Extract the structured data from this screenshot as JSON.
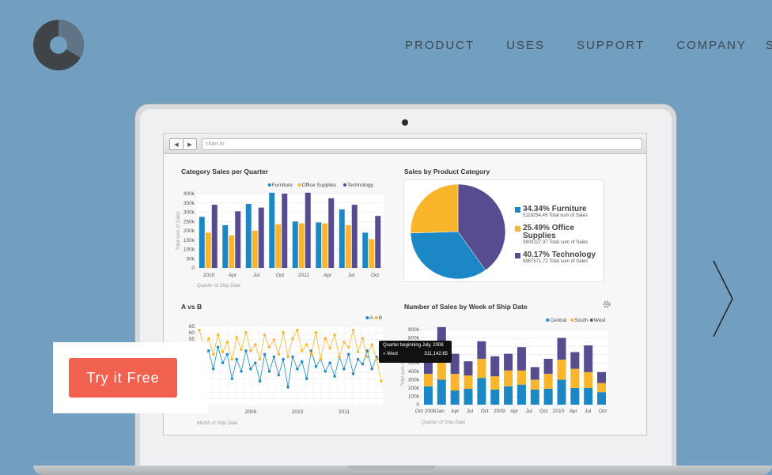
{
  "nav": {
    "items": [
      "PRODUCT",
      "USES",
      "SUPPORT",
      "COMPANY"
    ],
    "clipped": "S"
  },
  "browser": {
    "url": "chart.io",
    "back": "◀",
    "forward": "▶"
  },
  "cta": {
    "label": "Try it Free"
  },
  "colors": {
    "background": "#729fbf",
    "furniture": "#1b87c5",
    "office": "#f9b52b",
    "technology": "#564c8f",
    "cta": "#f0614f"
  },
  "tooltip": {
    "title": "Quarter beginning July, 2008",
    "series": "West",
    "value": "311,142.65"
  },
  "chart_data": [
    {
      "type": "bar",
      "title": "Category Sales per Quarter",
      "xlabel": "Quarter of Ship Date",
      "ylabel": "Total sum of Sales",
      "ylim": [
        0,
        400000
      ],
      "yticks": [
        "400k",
        "350k",
        "300k",
        "250k",
        "200k",
        "150k",
        "100k",
        "50k",
        "0"
      ],
      "xticks": [
        "2010",
        "Apr",
        "Jul",
        "Oct",
        "2011",
        "Apr",
        "Jul",
        "Oct"
      ],
      "categories": [
        "2010 Q1",
        "2010 Q2",
        "2010 Q3",
        "2010 Q4",
        "2011 Q1",
        "2011 Q2",
        "2011 Q3",
        "2011 Q4"
      ],
      "series": [
        {
          "name": "Furniture",
          "values": [
            275000,
            230000,
            345000,
            405000,
            250000,
            245000,
            315000,
            190000
          ]
        },
        {
          "name": "Office Supplies",
          "values": [
            190000,
            175000,
            200000,
            235000,
            240000,
            240000,
            230000,
            155000
          ]
        },
        {
          "name": "Technology",
          "values": [
            340000,
            305000,
            325000,
            400000,
            405000,
            375000,
            340000,
            280000
          ]
        }
      ],
      "legend": "top-right"
    },
    {
      "type": "pie",
      "title": "Sales by Product Category",
      "slices": [
        {
          "name": "Furniture",
          "percent": "34.34%",
          "value": 5119254.45,
          "sub": "5119254.45 Total sum of Sales"
        },
        {
          "name": "Office Supplies",
          "percent": "25.49%",
          "value": 3800227.37,
          "sub": "3800227.37 Total sum of Sales"
        },
        {
          "name": "Technology",
          "percent": "40.17%",
          "value": 5987571.72,
          "sub": "5987571.72 Total sum of Sales"
        }
      ],
      "labels": [
        "34.34% Furniture",
        "25.49% Office Supplies",
        "40.17% Technology"
      ]
    },
    {
      "type": "line",
      "title": "A vs B",
      "xlabel": "Month of Ship Date",
      "yticks": [
        "65",
        "60",
        "55",
        "50"
      ],
      "xticks": [
        "2009",
        "2010",
        "2011"
      ],
      "ylim": [
        0,
        65
      ],
      "series": [
        {
          "name": "A",
          "values": [
            50,
            40,
            45,
            30,
            48,
            35,
            42,
            22,
            38,
            28,
            45,
            30,
            35,
            20,
            42,
            28,
            40,
            25,
            38,
            15,
            40,
            30,
            36,
            22,
            45,
            32,
            38,
            28,
            35,
            24,
            40,
            30,
            42,
            26,
            38,
            34,
            45,
            30,
            40,
            36
          ]
        },
        {
          "name": "B",
          "values": [
            62,
            48,
            55,
            42,
            58,
            44,
            52,
            38,
            56,
            46,
            60,
            45,
            50,
            38,
            58,
            48,
            54,
            42,
            60,
            40,
            55,
            62,
            45,
            50,
            42,
            60,
            38,
            55,
            47,
            58,
            40,
            52,
            48,
            62,
            44,
            55,
            40,
            50,
            38,
            20
          ]
        }
      ],
      "legend": "top-right"
    },
    {
      "type": "bar",
      "stacked": true,
      "title": "Number of Sales by Week of Ship Date",
      "xlabel": "Quarter of Ship Date",
      "ylabel": "Total sum of Sales",
      "ylim": [
        0,
        900000
      ],
      "yticks": [
        "900k",
        "800k",
        "700k",
        "600k",
        "500k",
        "400k",
        "300k",
        "200k",
        "100k",
        "0"
      ],
      "xticks": [
        "Oct 2008",
        "Jan",
        "Apr",
        "Jul",
        "Oct",
        "2009",
        "Apr",
        "Jul",
        "Oct",
        "2010",
        "Apr",
        "Jul",
        "Oct"
      ],
      "series": [
        {
          "name": "Central",
          "values": [
            220000,
            300000,
            170000,
            190000,
            320000,
            180000,
            220000,
            240000,
            180000,
            190000,
            300000,
            200000,
            200000,
            150000
          ]
        },
        {
          "name": "South",
          "values": [
            150000,
            260000,
            200000,
            160000,
            230000,
            160000,
            190000,
            170000,
            120000,
            180000,
            240000,
            230000,
            190000,
            110000
          ]
        },
        {
          "name": "West",
          "values": [
            200000,
            370000,
            240000,
            170000,
            210000,
            240000,
            200000,
            280000,
            150000,
            180000,
            260000,
            200000,
            320000,
            130000
          ]
        }
      ],
      "legend": "top-right"
    }
  ]
}
